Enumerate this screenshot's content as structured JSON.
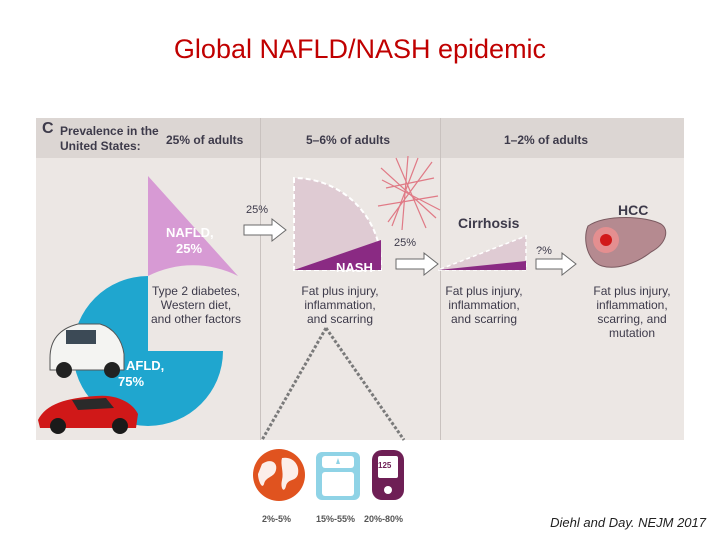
{
  "title": "Global NAFLD/NASH epidemic",
  "panel": {
    "letter": "C",
    "prevalence_label_line1": "Prevalence in the",
    "prevalence_label_line2": "United States:",
    "col1_header": "25% of adults",
    "col2_header": "5–6% of adults",
    "col3_header": "1–2% of adults",
    "nafld_25_line1": "NAFLD,",
    "nafld_25_line2": "25%",
    "nafl_75_line1": "AFLD,",
    "nafl_75_line2": "75%",
    "nash_label": "NASH",
    "cirrhosis_label": "Cirrhosis",
    "hcc_label": "HCC",
    "arrow1_pct": "25%",
    "arrow2_pct": "25%",
    "arrow3_pct": "?%",
    "factors_line1": "Type 2 diabetes,",
    "factors_line2": "Western diet,",
    "factors_line3": "and other factors",
    "nash_desc_line1": "Fat plus injury,",
    "nash_desc_line2": "inflammation,",
    "nash_desc_line3": "and scarring",
    "cirr_desc_line1": "Fat plus injury,",
    "cirr_desc_line2": "inflammation,",
    "cirr_desc_line3": "and scarring",
    "hcc_desc_line1": "Fat plus injury,",
    "hcc_desc_line2": "inflammation,",
    "hcc_desc_line3": "scarring, and",
    "hcc_desc_line4": "mutation"
  },
  "icons": {
    "globe_stat": "2%-5%",
    "scale_stat": "15%-55%",
    "glucometer_stat": "20%-80%",
    "glucometer_screen": "125"
  },
  "credit": "Diehl and Day. NEJM 2017",
  "colors": {
    "title": "#c00000",
    "nafld_pink": "#d79ad4",
    "nafl_blue": "#1fa6cf",
    "nash_purple": "#8a2a83",
    "globe_orange": "#e0531f",
    "scale_blue": "#8fd3e6",
    "glucometer_purple": "#6e1f55"
  }
}
